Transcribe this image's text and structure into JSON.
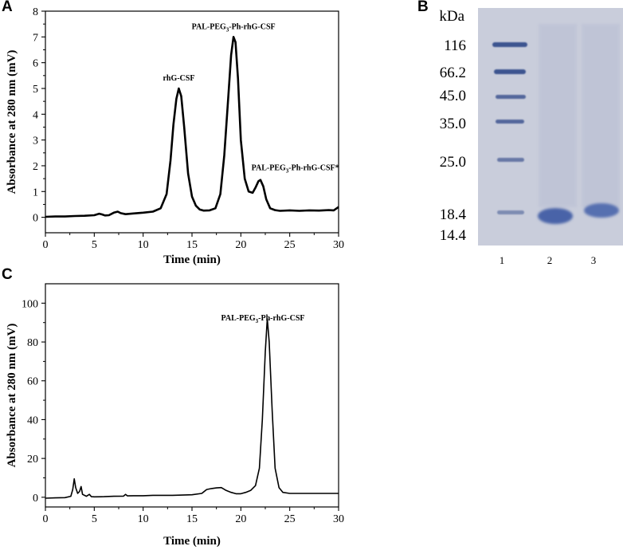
{
  "panels": {
    "A": "A",
    "B": "B",
    "C": "C"
  },
  "chart_data": [
    {
      "panel": "A",
      "type": "line",
      "xlabel": "Time (min)",
      "ylabel": "Absorbance at 280 nm (mV)",
      "xlim": [
        0,
        30
      ],
      "ylim": [
        -0.6,
        8
      ],
      "x_ticks": [
        0,
        5,
        10,
        15,
        20,
        25,
        30
      ],
      "y_ticks": [
        0,
        1,
        2,
        3,
        4,
        5,
        6,
        7,
        8
      ],
      "grid": false,
      "series": [
        {
          "x": [
            0,
            1,
            2,
            3,
            4,
            5,
            5.5,
            5.8,
            6.1,
            6.5,
            7,
            7.4,
            7.7,
            8.2,
            9,
            10,
            11,
            11.8,
            12.4,
            12.8,
            13.1,
            13.4,
            13.65,
            13.9,
            14.2,
            14.6,
            15,
            15.4,
            15.8,
            16.2,
            16.8,
            17.4,
            17.9,
            18.3,
            18.7,
            19.0,
            19.25,
            19.45,
            19.7,
            20.0,
            20.4,
            20.8,
            21.2,
            21.5,
            21.8,
            22.0,
            22.3,
            22.6,
            23.0,
            23.5,
            24,
            25,
            26,
            27,
            28,
            29,
            29.5,
            30
          ],
          "y": [
            0.02,
            0.03,
            0.03,
            0.05,
            0.06,
            0.08,
            0.14,
            0.11,
            0.07,
            0.08,
            0.18,
            0.22,
            0.16,
            0.12,
            0.15,
            0.18,
            0.22,
            0.35,
            0.9,
            2.2,
            3.6,
            4.6,
            5.0,
            4.7,
            3.5,
            1.7,
            0.8,
            0.45,
            0.3,
            0.26,
            0.27,
            0.35,
            0.9,
            2.4,
            4.6,
            6.3,
            7.0,
            6.8,
            5.4,
            3.0,
            1.5,
            1.0,
            0.95,
            1.15,
            1.4,
            1.45,
            1.2,
            0.7,
            0.35,
            0.28,
            0.25,
            0.27,
            0.25,
            0.27,
            0.26,
            0.28,
            0.27,
            0.4
          ]
        }
      ],
      "annotations": [
        {
          "text": "rhG-CSF",
          "x": 13.65,
          "y": 5.0
        },
        {
          "text": "PAL-PEG",
          "sub": "3",
          "text2": "-Ph-rhG-CSF",
          "x": 19.25,
          "y": 7.0
        },
        {
          "text": "PAL-PEG",
          "sub": "3",
          "text2": "-Ph-rhG-CSF*",
          "x": 21.9,
          "y": 1.45
        }
      ]
    },
    {
      "panel": "C",
      "type": "line",
      "xlabel": "Time (min)",
      "ylabel": "Absorbance at 280 nm (mV)",
      "xlim": [
        0,
        30
      ],
      "ylim": [
        -5,
        110
      ],
      "x_ticks": [
        0,
        5,
        10,
        15,
        20,
        25,
        30
      ],
      "y_ticks": [
        0,
        20,
        40,
        60,
        80,
        100
      ],
      "grid": false,
      "series": [
        {
          "x": [
            0,
            1,
            2,
            2.6,
            2.8,
            2.95,
            3.1,
            3.3,
            3.5,
            3.65,
            3.8,
            4.2,
            4.5,
            4.7,
            5,
            6,
            7,
            8,
            8.2,
            8.4,
            9,
            10,
            11,
            12,
            13,
            14,
            15,
            16,
            16.5,
            17,
            17.5,
            18,
            18.5,
            19,
            19.5,
            20,
            20.5,
            21,
            21.5,
            21.9,
            22.2,
            22.5,
            22.7,
            22.9,
            23.2,
            23.5,
            23.9,
            24.3,
            25,
            26,
            27,
            28,
            29,
            30
          ],
          "y": [
            -0.5,
            -0.3,
            -0.2,
            0.5,
            4,
            9.5,
            5,
            2,
            3,
            5.5,
            1.5,
            0.5,
            1.5,
            0.3,
            0.2,
            0.3,
            0.5,
            0.6,
            1.5,
            0.7,
            0.8,
            0.8,
            1.0,
            1.0,
            1.0,
            1.1,
            1.3,
            2,
            4,
            4.5,
            4.8,
            5,
            3.5,
            2.5,
            1.8,
            1.8,
            2.5,
            3.5,
            6,
            15,
            40,
            75,
            92,
            80,
            45,
            15,
            5,
            2.5,
            2,
            2,
            2,
            2,
            2,
            2
          ]
        }
      ],
      "annotations": [
        {
          "text": "PAL-PEG",
          "sub": "3",
          "text2": "-Ph-rhG-CSF",
          "x": 22.7,
          "y": 92
        }
      ]
    },
    {
      "panel": "B",
      "type": "gel",
      "unit_label": "kDa",
      "marker_labels": [
        "116",
        "66.2",
        "45.0",
        "35.0",
        "25.0",
        "18.4",
        "14.4"
      ],
      "lane_labels": [
        "1",
        "2",
        "3"
      ]
    }
  ]
}
